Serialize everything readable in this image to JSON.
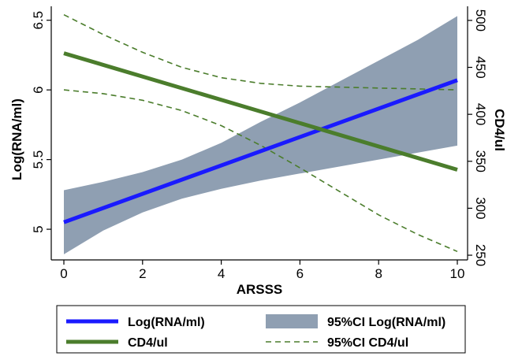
{
  "chart_data": {
    "type": "line",
    "xlabel": "ARSSS",
    "ylabel_left": "Log(RNA/ml)",
    "ylabel_right": "CD4/ul",
    "xlim": [
      0,
      10
    ],
    "ylim_left": [
      4.78,
      6.6
    ],
    "ylim_right": [
      245,
      515
    ],
    "x_ticks": [
      0,
      2,
      4,
      6,
      8,
      10
    ],
    "y_left_ticks": [
      5,
      5.5,
      6,
      6.5
    ],
    "y_right_ticks": [
      250,
      300,
      350,
      400,
      450,
      500
    ],
    "legend_position": "bottom",
    "series": [
      {
        "name": "Log(RNA/ml)",
        "axis": "left",
        "style": "line",
        "color": "#1a1aff",
        "x": [
          0,
          10
        ],
        "y": [
          5.05,
          6.07
        ]
      },
      {
        "name": "95%CI Log(RNA/ml)",
        "axis": "left",
        "style": "band",
        "color": "#8f9fb2",
        "x": [
          0,
          1,
          2,
          3,
          4,
          5,
          6,
          7,
          8,
          9,
          10
        ],
        "lower": [
          4.82,
          4.99,
          5.12,
          5.22,
          5.29,
          5.35,
          5.4,
          5.45,
          5.5,
          5.55,
          5.6
        ],
        "upper": [
          5.28,
          5.34,
          5.41,
          5.5,
          5.62,
          5.77,
          5.91,
          6.06,
          6.21,
          6.36,
          6.53
        ]
      },
      {
        "name": "CD4/ul",
        "axis": "right",
        "style": "line",
        "color": "#4b7d2c",
        "x": [
          0,
          10
        ],
        "y": [
          465,
          341
        ]
      },
      {
        "name": "95%CI CD4/ul",
        "axis": "right",
        "style": "dashed",
        "color": "#4b7d2c",
        "x": [
          0,
          1,
          2,
          3,
          4,
          5,
          6,
          7,
          8,
          9,
          10
        ],
        "lower": [
          426,
          422,
          415,
          404,
          388,
          367,
          343,
          318,
          293,
          272,
          254
        ],
        "upper": [
          506,
          485,
          466,
          450,
          439,
          433,
          430,
          429,
          428,
          427,
          426
        ]
      }
    ]
  }
}
